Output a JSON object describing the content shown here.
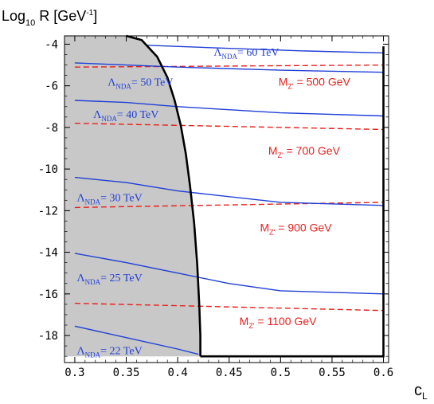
{
  "chart_data": {
    "type": "line",
    "title": "",
    "ylabel": {
      "main": "Log",
      "sub": "10",
      "rest": " R [GeV",
      "sup": "-1",
      "close": "]"
    },
    "xlabel": {
      "main": "c",
      "sub": "L"
    },
    "xlim": [
      0.29,
      0.605
    ],
    "ylim": [
      -19.3,
      -3.6
    ],
    "x_ticks": [
      0.3,
      0.35,
      0.4,
      0.45,
      0.5,
      0.55,
      0.6
    ],
    "x_tick_labels": [
      "0.3",
      "0.35",
      "0.4",
      "0.45",
      "0.5",
      "0.55",
      "0.6"
    ],
    "y_ticks": [
      -4,
      -6,
      -8,
      -10,
      -12,
      -14,
      -16,
      -18
    ],
    "y_tick_labels": [
      "-4",
      "-6",
      "-8",
      "-10",
      "-12",
      "-14",
      "-16",
      "-18"
    ],
    "excluded_region": {
      "fill": "#c8c8c8",
      "boundary": [
        [
          0.35,
          -3.6
        ],
        [
          0.365,
          -3.8
        ],
        [
          0.38,
          -4.6
        ],
        [
          0.39,
          -5.6
        ],
        [
          0.397,
          -6.7
        ],
        [
          0.403,
          -7.9
        ],
        [
          0.408,
          -9.3
        ],
        [
          0.412,
          -10.8
        ],
        [
          0.416,
          -12.6
        ],
        [
          0.419,
          -14.6
        ],
        [
          0.421,
          -16.6
        ],
        [
          0.422,
          -18.0
        ],
        [
          0.422,
          -19.0
        ]
      ]
    },
    "allowed_box": {
      "x": [
        0.422,
        0.6
      ],
      "y": [
        -19.0,
        -4.1
      ]
    },
    "lambda_series": [
      {
        "name": "60 TeV",
        "values": [
          [
            0.37,
            -4.05
          ],
          [
            0.45,
            -4.2
          ],
          [
            0.52,
            -4.32
          ],
          [
            0.6,
            -4.42
          ]
        ]
      },
      {
        "name": "50 TeV",
        "values": [
          [
            0.3,
            -4.9
          ],
          [
            0.35,
            -5.0
          ],
          [
            0.4,
            -5.1
          ],
          [
            0.5,
            -5.25
          ],
          [
            0.6,
            -5.35
          ]
        ]
      },
      {
        "name": "40 TeV",
        "values": [
          [
            0.3,
            -6.7
          ],
          [
            0.35,
            -6.8
          ],
          [
            0.4,
            -7.0
          ],
          [
            0.5,
            -7.3
          ],
          [
            0.6,
            -7.45
          ]
        ]
      },
      {
        "name": "30 TeV",
        "values": [
          [
            0.3,
            -10.4
          ],
          [
            0.35,
            -10.65
          ],
          [
            0.4,
            -11.05
          ],
          [
            0.5,
            -11.6
          ],
          [
            0.6,
            -11.75
          ]
        ]
      },
      {
        "name": "25 TeV",
        "values": [
          [
            0.3,
            -14.05
          ],
          [
            0.35,
            -14.5
          ],
          [
            0.4,
            -15.0
          ],
          [
            0.45,
            -15.5
          ],
          [
            0.5,
            -15.85
          ],
          [
            0.6,
            -16.0
          ]
        ]
      },
      {
        "name": "22 TeV",
        "values": [
          [
            0.3,
            -17.55
          ],
          [
            0.35,
            -18.1
          ],
          [
            0.4,
            -18.65
          ],
          [
            0.42,
            -18.9
          ]
        ]
      }
    ],
    "mz_series": [
      {
        "name": "500 GeV",
        "values": [
          [
            0.3,
            -5.1
          ],
          [
            0.6,
            -5.0
          ]
        ]
      },
      {
        "name": "700 GeV",
        "values": [
          [
            0.3,
            -7.8
          ],
          [
            0.6,
            -8.1
          ]
        ]
      },
      {
        "name": "900 GeV",
        "values": [
          [
            0.3,
            -11.85
          ],
          [
            0.6,
            -11.6
          ]
        ]
      },
      {
        "name": "1100 GeV",
        "values": [
          [
            0.3,
            -16.45
          ],
          [
            0.6,
            -16.8
          ]
        ]
      }
    ],
    "lambda_labels": [
      {
        "pre": "Λ",
        "sub": "NDA",
        "post": "= 60 TeV",
        "x": 0.435,
        "y": -4.55
      },
      {
        "pre": "Λ",
        "sub": "NDA",
        "post": "= 50 TeV",
        "x": 0.332,
        "y": -6.0
      },
      {
        "pre": "Λ",
        "sub": "NDA",
        "post": "= 40 TeV",
        "x": 0.318,
        "y": -7.55
      },
      {
        "pre": "Λ",
        "sub": "NDA",
        "post": "= 30 TeV",
        "x": 0.302,
        "y": -11.55
      },
      {
        "pre": "Λ",
        "sub": "NDA",
        "post": "= 25 TeV",
        "x": 0.302,
        "y": -15.4
      },
      {
        "pre": "Λ",
        "sub": "NDA",
        "post": "= 22 TeV",
        "x": 0.302,
        "y": -18.9
      }
    ],
    "mz_labels": [
      {
        "pre": "M",
        "sub": "Z'",
        "post": " = 500 GeV",
        "x": 0.498,
        "y": -6.0
      },
      {
        "pre": "M",
        "sub": "Z'",
        "post": " = 700 GeV",
        "x": 0.488,
        "y": -9.3
      },
      {
        "pre": "M",
        "sub": "Z'",
        "post": " = 900 GeV",
        "x": 0.48,
        "y": -13.0
      },
      {
        "pre": "M",
        "sub": "Z'",
        "post": " = 1100 GeV",
        "x": 0.46,
        "y": -17.5
      }
    ],
    "colors": {
      "lambda": "#1f3fd6",
      "mz": "#e8201c",
      "boundary": "#000000",
      "shade": "#c8c8c8"
    },
    "grid": false,
    "legend": "none"
  }
}
